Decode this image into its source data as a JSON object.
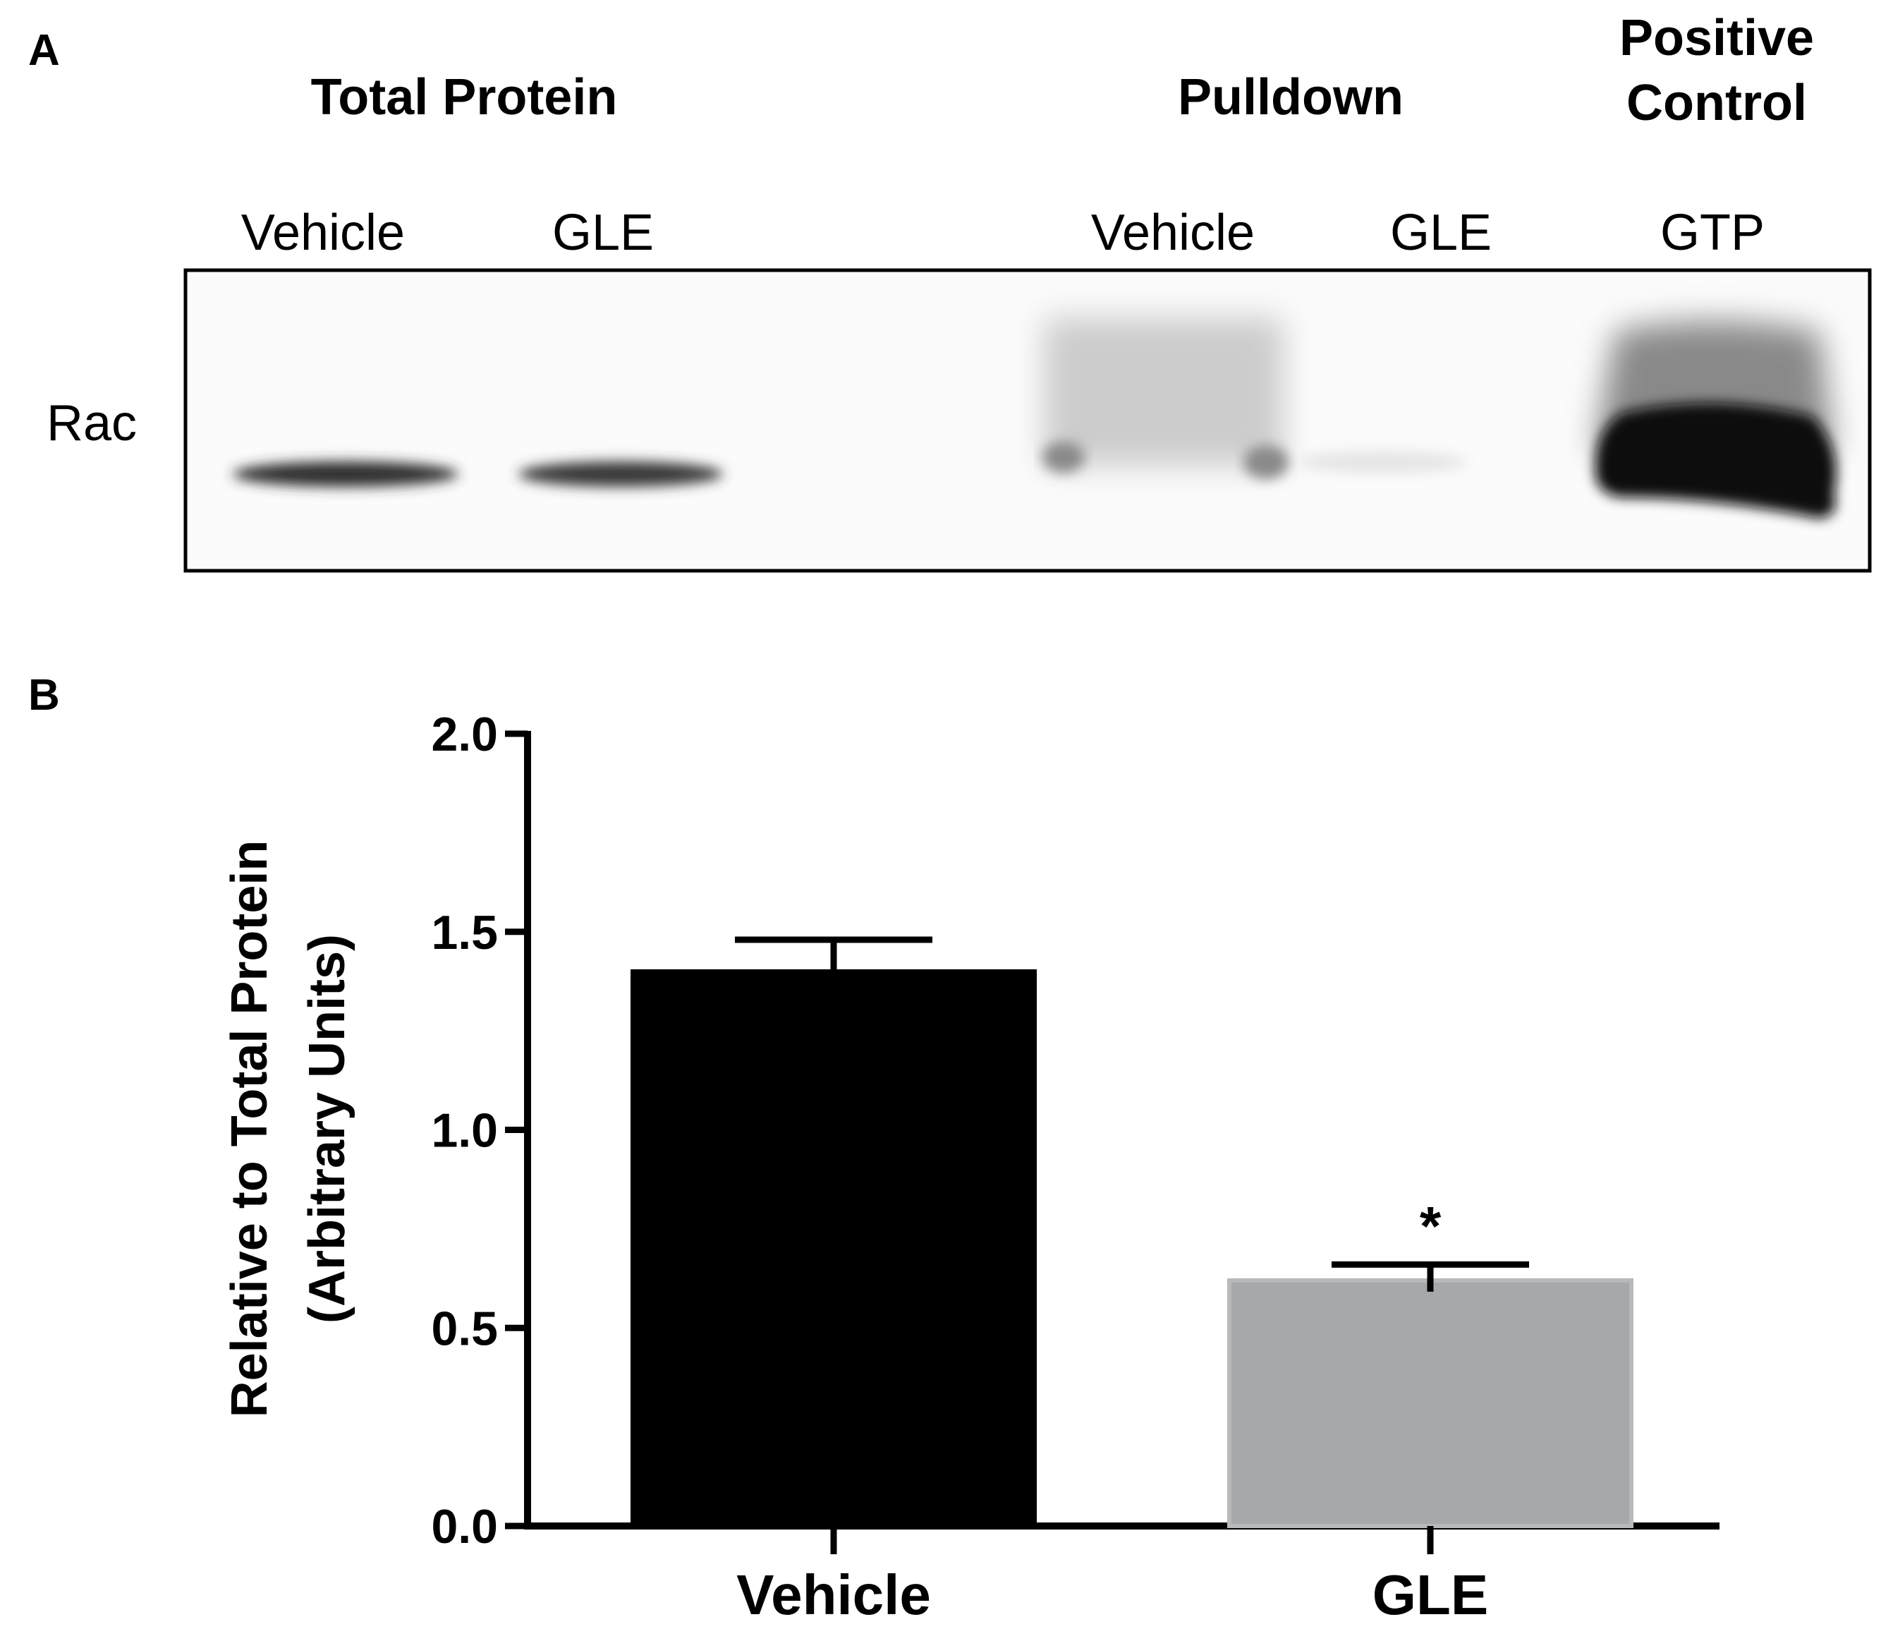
{
  "figure": {
    "panel_a": {
      "letter": "A",
      "group_titles": {
        "total_protein": "Total Protein",
        "pulldown": "Pulldown",
        "positive_control_line1": "Positive",
        "positive_control_line2": "Control"
      },
      "lane_labels": [
        "Vehicle",
        "GLE",
        "Vehicle",
        "GLE",
        "GTP"
      ],
      "row_label": "Rac",
      "band_intensity": [
        0.85,
        0.8,
        0.0,
        0.45,
        0.05,
        1.0
      ]
    },
    "panel_b": {
      "letter": "B"
    }
  },
  "chart_data": {
    "type": "bar",
    "title": "",
    "categories": [
      "Vehicle",
      "GLE"
    ],
    "values": [
      1.4,
      0.62
    ],
    "error": [
      0.08,
      0.04
    ],
    "bar_colors": [
      "#000000",
      "#a7a8aa"
    ],
    "significance": [
      "",
      "*"
    ],
    "xlabel": "",
    "ylabel_line1": "Relative to Total Protein",
    "ylabel_line2": "(Arbitrary Units)",
    "ylim": [
      0,
      2.0
    ],
    "yticks": [
      "0.0",
      "0.5",
      "1.0",
      "1.5",
      "2.0"
    ],
    "grid": false
  }
}
